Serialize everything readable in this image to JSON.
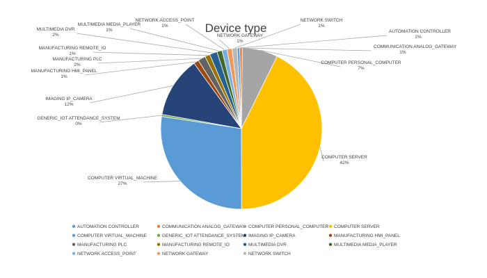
{
  "chart_data": {
    "type": "pie",
    "title": "Device type",
    "legend_position": "bottom",
    "slices": [
      {
        "label": "AUTOMATION CONTROLLER",
        "display_name": "AUTOMATION CONTROLLER",
        "value": 0.5,
        "pct_label": "1%",
        "color": "#5b9bd5"
      },
      {
        "label": "COMMUNICATION ANALOG_GATEWAY",
        "display_name": "COMMUNICATION ANALOG_GATEWAY",
        "value": 0.5,
        "pct_label": "1%",
        "color": "#ed7d31"
      },
      {
        "label": "COMPUTER PERSONAL_COMPUTER",
        "display_name": "COMPUTER PERSONAL_COMPUTER",
        "value": 7,
        "pct_label": "7%",
        "color": "#a5a5a5"
      },
      {
        "label": "COMPUTER SERVER",
        "display_name": "COMPUTER SERVER",
        "value": 42,
        "pct_label": "42%",
        "color": "#ffc000"
      },
      {
        "label": "COMPUTER VIRTUAL_MACHINE",
        "display_name": "COMPUTER VIRTUAL_MACHINE",
        "value": 27,
        "pct_label": "27%",
        "color": "#5b9bd5"
      },
      {
        "label": "GENERIC_IOT ATTENDANCE_SYSTEM",
        "display_name": "GENERIC_IOT ATTENDANCE_SYSTEM",
        "value": 0.4,
        "pct_label": "0%",
        "color": "#70ad47"
      },
      {
        "label": "IMAGING IP_CAMERA",
        "display_name": "IMAGING IP_CAMERA",
        "value": 12,
        "pct_label": "12%",
        "color": "#264478"
      },
      {
        "label": "MANUFACTURING HMI_PANEL",
        "display_name": "MANUFACTURING HMI_PANEL",
        "value": 1,
        "pct_label": "1%",
        "color": "#9e480e"
      },
      {
        "label": "MANUFACTURING PLC",
        "display_name": "MANUFACTURING PLC",
        "value": 1.5,
        "pct_label": "2%",
        "color": "#636363"
      },
      {
        "label": "MANUFACTURING REMOTE_IO",
        "display_name": "MANUFACTURING REMOTE_IO",
        "value": 1,
        "pct_label": "1%",
        "color": "#997300"
      },
      {
        "label": "MULTIMEDIA DVR",
        "display_name": "MULTIMEDIA DVR",
        "value": 1.5,
        "pct_label": "2%",
        "color": "#255e91"
      },
      {
        "label": "MULTIMEDIA MEDIA_PLAYER",
        "display_name": "MULTIMEDIA MEDIA_PLAYER",
        "value": 1,
        "pct_label": "1%",
        "color": "#43682b"
      },
      {
        "label": "NETWORK ACCESS_POINT",
        "display_name": "NETWORK ACCESS_POINT",
        "value": 1,
        "pct_label": "1%",
        "color": "#7cafdd"
      },
      {
        "label": "NETWORK GATEWAY",
        "display_name": "NETWORK GATEWAY",
        "value": 1,
        "pct_label": "1%",
        "color": "#f1975a"
      },
      {
        "label": "NETWORK SWITCH",
        "display_name": "NETWORK SWITCH",
        "value": 1,
        "pct_label": "1%",
        "color": "#b7b7b7"
      }
    ]
  }
}
